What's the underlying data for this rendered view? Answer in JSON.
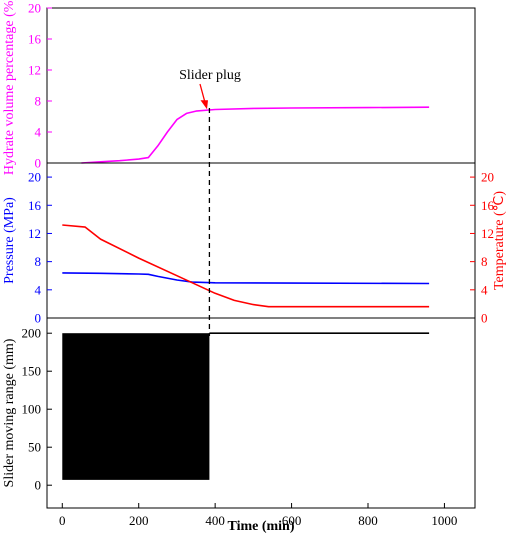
{
  "chart_data": [
    {
      "type": "line",
      "ylabel": "Hydrate volume percentage (%)",
      "ylim": [
        0,
        20
      ],
      "yticks": [
        0,
        4,
        8,
        12,
        16,
        20
      ],
      "xlim": [
        -40,
        1080
      ],
      "series": [
        {
          "color": "#ff00ff",
          "points": [
            [
              50,
              0
            ],
            [
              100,
              0.15
            ],
            [
              150,
              0.3
            ],
            [
              200,
              0.5
            ],
            [
              225,
              0.7
            ],
            [
              250,
              2.2
            ],
            [
              275,
              4.0
            ],
            [
              300,
              5.6
            ],
            [
              325,
              6.4
            ],
            [
              350,
              6.7
            ],
            [
              400,
              6.9
            ],
            [
              500,
              7.05
            ],
            [
              600,
              7.1
            ],
            [
              800,
              7.15
            ],
            [
              960,
              7.2
            ]
          ]
        }
      ],
      "annotation": {
        "text": "Slider plug",
        "x": 380,
        "y": 6.8
      }
    },
    {
      "type": "line",
      "ylabel": "Pressure (MPa)",
      "y2label": "Temperature (℃)",
      "ylim": [
        0,
        22
      ],
      "yticks": [
        0,
        4,
        8,
        12,
        16,
        20
      ],
      "y2ticks": [
        0,
        4,
        8,
        12,
        16,
        20
      ],
      "xlim": [
        -40,
        1080
      ],
      "series": [
        {
          "color": "#0000ff",
          "axis": "left",
          "points": [
            [
              0,
              6.4
            ],
            [
              100,
              6.35
            ],
            [
              200,
              6.25
            ],
            [
              225,
              6.2
            ],
            [
              250,
              5.9
            ],
            [
              300,
              5.4
            ],
            [
              340,
              5.1
            ],
            [
              400,
              5.0
            ],
            [
              600,
              4.95
            ],
            [
              960,
              4.9
            ]
          ]
        },
        {
          "color": "#ff0000",
          "axis": "right",
          "points": [
            [
              0,
              13.2
            ],
            [
              60,
              12.9
            ],
            [
              100,
              11.2
            ],
            [
              200,
              8.5
            ],
            [
              300,
              6.0
            ],
            [
              400,
              3.5
            ],
            [
              450,
              2.5
            ],
            [
              500,
              1.9
            ],
            [
              540,
              1.6
            ],
            [
              600,
              1.6
            ],
            [
              800,
              1.6
            ],
            [
              960,
              1.6
            ]
          ]
        }
      ]
    },
    {
      "type": "line",
      "ylabel": "Slider moving range (mm)",
      "xlabel": "Time (min)",
      "ylim": [
        -30,
        220
      ],
      "yticks": [
        0,
        50,
        100,
        150,
        200
      ],
      "xlim": [
        -40,
        1080
      ],
      "xticks": [
        0,
        200,
        400,
        600,
        800,
        1000
      ],
      "oscillation": {
        "x_start": 0,
        "x_end": 385,
        "min": 7,
        "max": 200
      },
      "series": [
        {
          "color": "#000000",
          "points": [
            [
              385,
              200
            ],
            [
              960,
              200
            ]
          ]
        }
      ],
      "marker_line": {
        "x": 385,
        "style": "dashed"
      }
    }
  ]
}
